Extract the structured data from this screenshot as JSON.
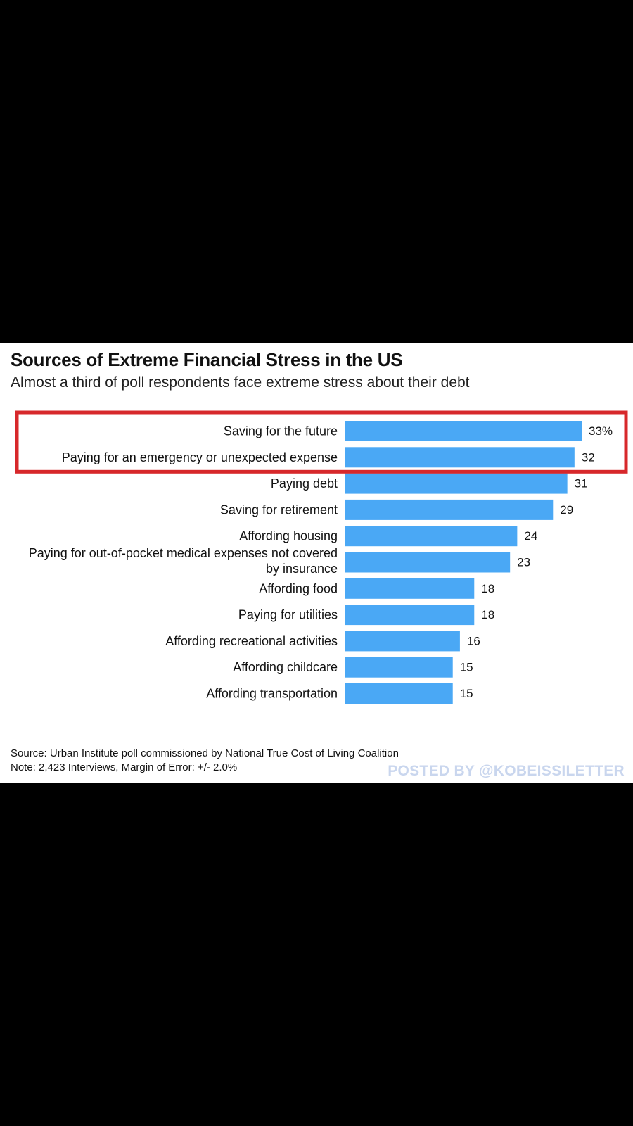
{
  "chart_data": {
    "type": "bar",
    "orientation": "horizontal",
    "title": "Sources of Extreme Financial Stress in the US",
    "subtitle": "Almost a third of poll respondents face extreme stress about their debt",
    "categories": [
      "Saving for the future",
      "Paying for an emergency or unexpected expense",
      "Paying debt",
      "Saving for retirement",
      "Affording housing",
      "Paying for out-of-pocket medical expenses not covered by insurance",
      "Affording food",
      "Paying for utilities",
      "Affording recreational activities",
      "Affording childcare",
      "Affording transportation"
    ],
    "category_label_lines": [
      [
        "Saving for the future"
      ],
      [
        "Paying for an emergency or unexpected expense"
      ],
      [
        "Paying debt"
      ],
      [
        "Saving for retirement"
      ],
      [
        "Affording housing"
      ],
      [
        "Paying for out-of-pocket medical expenses not covered",
        "by insurance"
      ],
      [
        "Affording food"
      ],
      [
        "Paying for utilities"
      ],
      [
        "Affording recreational activities"
      ],
      [
        "Affording childcare"
      ],
      [
        "Affording transportation"
      ]
    ],
    "values": [
      33,
      32,
      31,
      29,
      24,
      23,
      18,
      18,
      16,
      15,
      15
    ],
    "value_labels": [
      "33%",
      "32",
      "31",
      "29",
      "24",
      "23",
      "18",
      "18",
      "16",
      "15",
      "15"
    ],
    "bar_color": "#4aa8f5",
    "highlight": {
      "categories": [
        "Saving for the future",
        "Paying for an emergency or unexpected expense"
      ],
      "color": "#d7282b"
    },
    "xlim": [
      0,
      33
    ],
    "grid": false,
    "legend": "none",
    "source": "Source: Urban Institute poll commissioned by National True Cost of Living Coalition",
    "note": "Note: 2,423 Interviews, Margin of Error: +/- 2.0%"
  },
  "watermark": "POSTED BY @KOBEISSILETTER"
}
